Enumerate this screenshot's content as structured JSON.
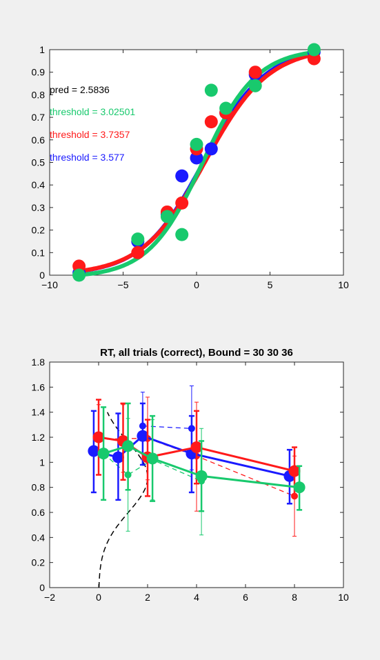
{
  "chart_data": [
    {
      "type": "scatter",
      "title": "",
      "xlabel": "",
      "ylabel": "",
      "xlim": [
        -10,
        10
      ],
      "ylim": [
        0,
        1
      ],
      "xticks": [
        "−10",
        "−5",
        "0",
        "5",
        "10"
      ],
      "yticks": [
        "0",
        "0.1",
        "0.2",
        "0.3",
        "0.4",
        "0.5",
        "0.6",
        "0.7",
        "0.8",
        "0.9",
        "1"
      ],
      "grid": false,
      "annotations": [
        {
          "text": "pred = 2.5836",
          "color": "#000000"
        },
        {
          "text": "threshold = 3.02501",
          "color": "#18c96d"
        },
        {
          "text": "threshold = 3.7357",
          "color": "#ff1a1a"
        },
        {
          "text": "threshold = 3.577",
          "color": "#1a1aff"
        }
      ],
      "series": [
        {
          "color": "#1a1aff",
          "points": [
            [
              -8,
              0.01
            ],
            [
              -4,
              0.15
            ],
            [
              -2,
              0.27
            ],
            [
              -1,
              0.44
            ],
            [
              0,
              0.52
            ],
            [
              1,
              0.56
            ],
            [
              2,
              0.72
            ],
            [
              4,
              0.89
            ],
            [
              8,
              0.99
            ]
          ],
          "curve": {
            "mu": 0.5,
            "s": 2.1,
            "lo": 0.0,
            "hi": 1.01
          }
        },
        {
          "color": "#ff1a1a",
          "points": [
            [
              -8,
              0.04
            ],
            [
              -4,
              0.1
            ],
            [
              -2,
              0.28
            ],
            [
              -1,
              0.32
            ],
            [
              0,
              0.56
            ],
            [
              1,
              0.68
            ],
            [
              2,
              0.72
            ],
            [
              4,
              0.9
            ],
            [
              8,
              0.96
            ]
          ],
          "curve": {
            "mu": 0.6,
            "s": 2.15,
            "lo": 0.0,
            "hi": 1.01
          }
        },
        {
          "color": "#18c96d",
          "points": [
            [
              -8,
              0.0
            ],
            [
              -4,
              0.16
            ],
            [
              -2,
              0.26
            ],
            [
              -1,
              0.18
            ],
            [
              0,
              0.58
            ],
            [
              1,
              0.82
            ],
            [
              2,
              0.74
            ],
            [
              4,
              0.84
            ],
            [
              8,
              1.0
            ]
          ],
          "curve": {
            "mu": 0.4,
            "s": 1.85,
            "lo": -0.01,
            "hi": 1.005
          }
        }
      ]
    },
    {
      "type": "line",
      "title": "RT, all trials (correct), Bound = 30  30  36",
      "xlabel": "",
      "ylabel": "",
      "xlim": [
        -2,
        10
      ],
      "ylim": [
        0,
        1.8
      ],
      "xticks": [
        "−2",
        "0",
        "2",
        "4",
        "6",
        "8",
        "10"
      ],
      "yticks": [
        "0",
        "0.2",
        "0.4",
        "0.6",
        "0.8",
        "1",
        "1.2",
        "1.4",
        "1.6",
        "1.8"
      ],
      "grid": false,
      "series": [
        {
          "color": "#1a1aff",
          "style": "solid",
          "marker": "large",
          "points": [
            [
              -0.2,
              1.09
            ],
            [
              0.8,
              1.04
            ],
            [
              1.8,
              1.21
            ],
            [
              3.8,
              1.07
            ],
            [
              7.8,
              0.89
            ]
          ],
          "err_low": [
            0.76,
            0.7,
            0.98,
            0.76,
            0.67
          ],
          "err_high": [
            1.41,
            1.39,
            1.47,
            1.37,
            1.1
          ]
        },
        {
          "color": "#ff1a1a",
          "style": "solid",
          "marker": "large",
          "points": [
            [
              0,
              1.2
            ],
            [
              1,
              1.17
            ],
            [
              2,
              1.04
            ],
            [
              4,
              1.12
            ],
            [
              8,
              0.93
            ]
          ],
          "err_low": [
            0.9,
            0.86,
            0.73,
            0.83,
            0.74
          ],
          "err_high": [
            1.5,
            1.47,
            1.34,
            1.41,
            1.12
          ]
        },
        {
          "color": "#18c96d",
          "style": "solid",
          "marker": "large",
          "points": [
            [
              0.2,
              1.07
            ],
            [
              1.2,
              1.13
            ],
            [
              2.2,
              1.03
            ],
            [
              4.2,
              0.89
            ],
            [
              8.2,
              0.8
            ]
          ],
          "err_low": [
            0.7,
            0.78,
            0.69,
            0.61,
            0.62
          ],
          "err_high": [
            1.44,
            1.47,
            1.37,
            1.17,
            0.97
          ]
        },
        {
          "color": "#1a1aff",
          "style": "dashed",
          "marker": "small",
          "points": [
            [
              1.8,
              1.29
            ],
            [
              3.8,
              1.27
            ]
          ],
          "err_low": [
            1.02,
            0.94
          ],
          "err_high": [
            1.56,
            1.61
          ]
        },
        {
          "color": "#ff1a1a",
          "style": "dashed",
          "marker": "small",
          "points": [
            [
              0,
              1.18
            ],
            [
              1,
              1.19
            ],
            [
              2,
              1.19
            ],
            [
              4,
              1.05
            ],
            [
              8,
              0.73
            ]
          ],
          "err_low": [
            0.9,
            0.92,
            0.86,
            0.61,
            0.41
          ],
          "err_high": [
            1.46,
            1.46,
            1.52,
            1.48,
            1.05
          ]
        },
        {
          "color": "#18c96d",
          "style": "dashed",
          "marker": "small",
          "points": [
            [
              0.2,
              1.07
            ],
            [
              1.2,
              0.9
            ],
            [
              2.2,
              1.02
            ],
            [
              4.2,
              0.85
            ]
          ],
          "err_low": [
            0.7,
            0.45,
            0.7,
            0.42
          ],
          "err_high": [
            1.44,
            1.35,
            1.34,
            1.27
          ]
        }
      ],
      "density_curve": {
        "color": "#000000",
        "style": "dashed",
        "peak_x": 2.0,
        "center_y": 0.88,
        "spread": 0.28
      }
    }
  ]
}
